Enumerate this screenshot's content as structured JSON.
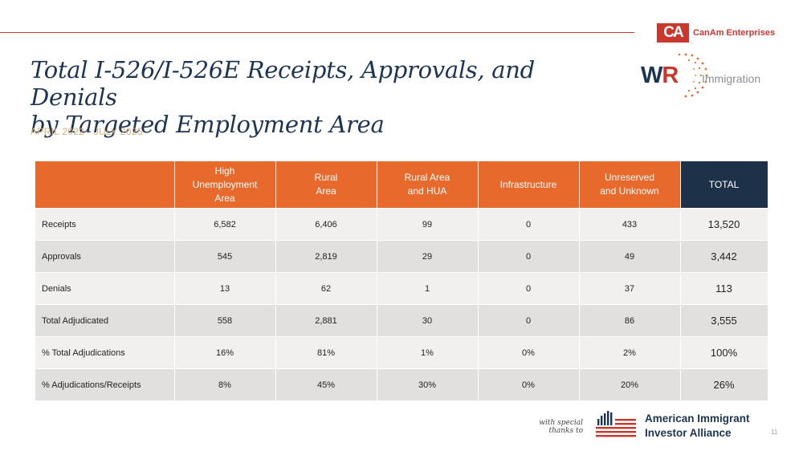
{
  "header": {
    "title_line1": "Total I-526/I-526E Receipts, Approvals, and Denials",
    "title_line2": "by Targeted Employment Area",
    "subtitle": "APRIL 2022 - JULY 2025"
  },
  "logos": {
    "canam_mark": "CA",
    "canam_name": "CanAm Enterprises",
    "wr_letters_w": "W",
    "wr_letters_r": "R",
    "wr_word": "Immigration"
  },
  "table": {
    "columns": [
      {
        "line1": "High",
        "line2": "Unemployment",
        "line3": "Area"
      },
      {
        "line1": "Rural",
        "line2": "Area"
      },
      {
        "line1": "Rural Area",
        "line2": "and HUA"
      },
      {
        "line1": "Infrastructure"
      },
      {
        "line1": "Unreserved",
        "line2": "and Unknown"
      },
      {
        "line1": "TOTAL"
      }
    ],
    "rows": [
      {
        "label": "Receipts",
        "values": [
          "6,582",
          "6,406",
          "99",
          "0",
          "433",
          "13,520"
        ]
      },
      {
        "label": "Approvals",
        "values": [
          "545",
          "2,819",
          "29",
          "0",
          "49",
          "3,442"
        ]
      },
      {
        "label": "Denials",
        "values": [
          "13",
          "62",
          "1",
          "0",
          "37",
          "113"
        ]
      },
      {
        "label": "Total Adjudicated",
        "values": [
          "558",
          "2,881",
          "30",
          "0",
          "86",
          "3,555"
        ]
      },
      {
        "label": "% Total Adjudications",
        "values": [
          "16%",
          "81%",
          "1%",
          "0%",
          "2%",
          "100%"
        ]
      },
      {
        "label": "% Adjudications/Receipts",
        "values": [
          "8%",
          "45%",
          "30%",
          "0%",
          "20%",
          "26%"
        ]
      }
    ]
  },
  "footer": {
    "thanks_line1": "with special",
    "thanks_line2": "thanks to",
    "alliance_line1": "American Immigrant",
    "alliance_line2": "Investor Alliance",
    "page_number": "11"
  },
  "colors": {
    "accent_orange": "#e8692c",
    "navy": "#1d3148",
    "brand_red": "#c9382e"
  }
}
